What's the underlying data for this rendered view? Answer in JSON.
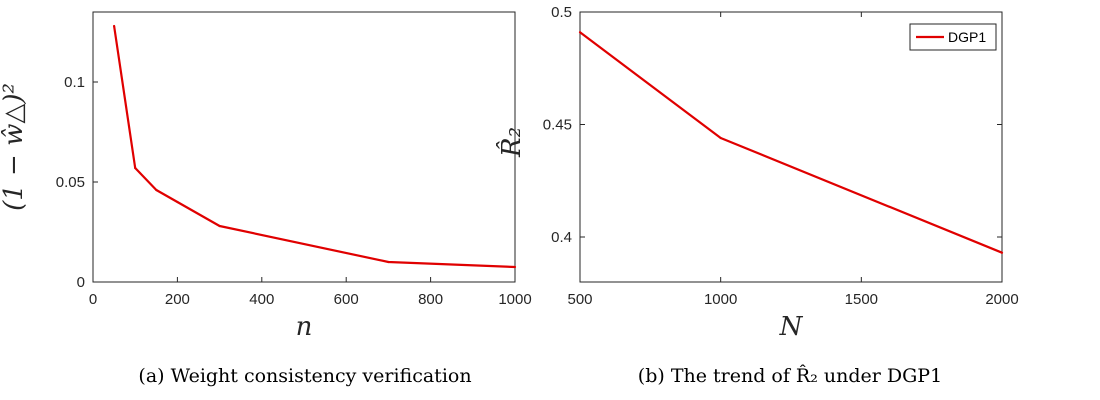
{
  "chart_data": [
    {
      "type": "line",
      "x": [
        50,
        100,
        150,
        200,
        300,
        700,
        1000
      ],
      "series": [
        {
          "values": [
            0.128,
            0.057,
            0.046,
            0.04,
            0.028,
            0.01,
            0.0075
          ],
          "color": "#e00000"
        }
      ],
      "xlabel": "n",
      "ylabel": "(1 − ŵ△)²",
      "xlim": [
        0,
        1000
      ],
      "ylim": [
        0,
        0.135
      ],
      "xticks": [
        0,
        200,
        400,
        600,
        800,
        1000
      ],
      "xtick_labels": [
        "0",
        "200",
        "400",
        "600",
        "800",
        "1000"
      ],
      "yticks": [
        0,
        0.05,
        0.1
      ],
      "ytick_labels": [
        "0",
        "0.05",
        "0.1"
      ],
      "caption": "(a) Weight consistency verification",
      "grid": false
    },
    {
      "type": "line",
      "x": [
        500,
        1000,
        2000
      ],
      "series": [
        {
          "name": "DGP1",
          "values": [
            0.491,
            0.444,
            0.393
          ],
          "color": "#e00000"
        }
      ],
      "xlabel": "N",
      "ylabel": "R̂₂",
      "xlim": [
        500,
        2000
      ],
      "ylim": [
        0.38,
        0.5
      ],
      "xticks": [
        500,
        1000,
        1500,
        2000
      ],
      "xtick_labels": [
        "500",
        "1000",
        "1500",
        "2000"
      ],
      "yticks": [
        0.4,
        0.45,
        0.5
      ],
      "ytick_labels": [
        "0.4",
        "0.45",
        "0.5"
      ],
      "caption": "(b) The trend of R̂₂ under DGP1",
      "legend": "top-right",
      "grid": false
    }
  ]
}
